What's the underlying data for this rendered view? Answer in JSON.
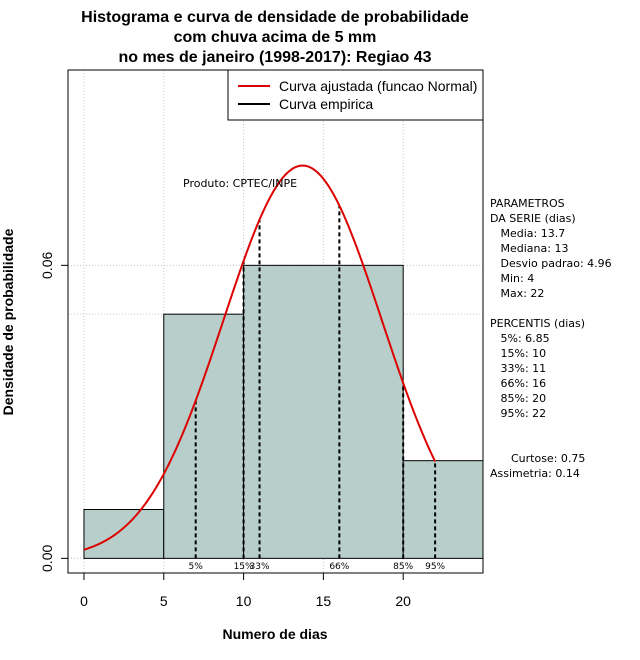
{
  "chart_data": {
    "type": "bar",
    "title_lines": [
      "Histograma e curva de densidade de probabilidade",
      "com chuva acima de 5 mm",
      "no mes de janeiro (1998-2017): Regiao 43"
    ],
    "xlabel": "Numero de dias",
    "ylabel": "Densidade de probabilidade",
    "xlim": [
      -1,
      25
    ],
    "ylim": [
      -0.003,
      0.1
    ],
    "x_ticks": [
      0,
      5,
      10,
      15,
      20
    ],
    "y_ticks": [
      0.0,
      0.06
    ],
    "y_tick_labels": [
      "0.00",
      "0.06"
    ],
    "grid": true,
    "grid_x": [
      0,
      5,
      10,
      15,
      20
    ],
    "grid_y": [
      0.0,
      0.06,
      0.05,
      0.1
    ],
    "bins": [
      {
        "x0": 0,
        "x1": 5,
        "density": 0.01
      },
      {
        "x0": 5,
        "x1": 10,
        "density": 0.05
      },
      {
        "x0": 10,
        "x1": 20,
        "density": 0.06
      },
      {
        "x0": 20,
        "x1": 25,
        "density": 0.02
      }
    ],
    "bar_color": "#b7cecb",
    "normal_fit": {
      "mean": 13.7,
      "sd": 4.96,
      "x_from": 0,
      "x_to": 22,
      "color": "#dd0000"
    },
    "percentile_lines": [
      {
        "label": "5%",
        "x": 7
      },
      {
        "label": "15%",
        "x": 10
      },
      {
        "label": "33%",
        "x": 11
      },
      {
        "label": "66%",
        "x": 16
      },
      {
        "label": "85%",
        "x": 20
      },
      {
        "label": "95%",
        "x": 22
      }
    ],
    "legend": {
      "placement": "top-right",
      "items": [
        {
          "label": "Curva ajustada (funcao Normal)",
          "color": "#dd0000"
        },
        {
          "label": "Curva empirica",
          "color": "#000000"
        }
      ]
    },
    "annotation": "Produto: CPTEC/INPE",
    "side_text": [
      "PARAMETROS",
      "DA SERIE (dias)",
      "   Media: 13.7",
      "   Mediana: 13",
      "   Desvio padrao: 4.96",
      "   Min: 4",
      "   Max: 22",
      "",
      "PERCENTIS (dias)",
      "   5%: 6.85",
      "   15%: 10",
      "   33%: 11",
      "   66%: 16",
      "   85%: 20",
      "   95%: 22",
      "",
      "",
      "      Curtose: 0.75",
      "Assimetria: 0.14"
    ]
  }
}
